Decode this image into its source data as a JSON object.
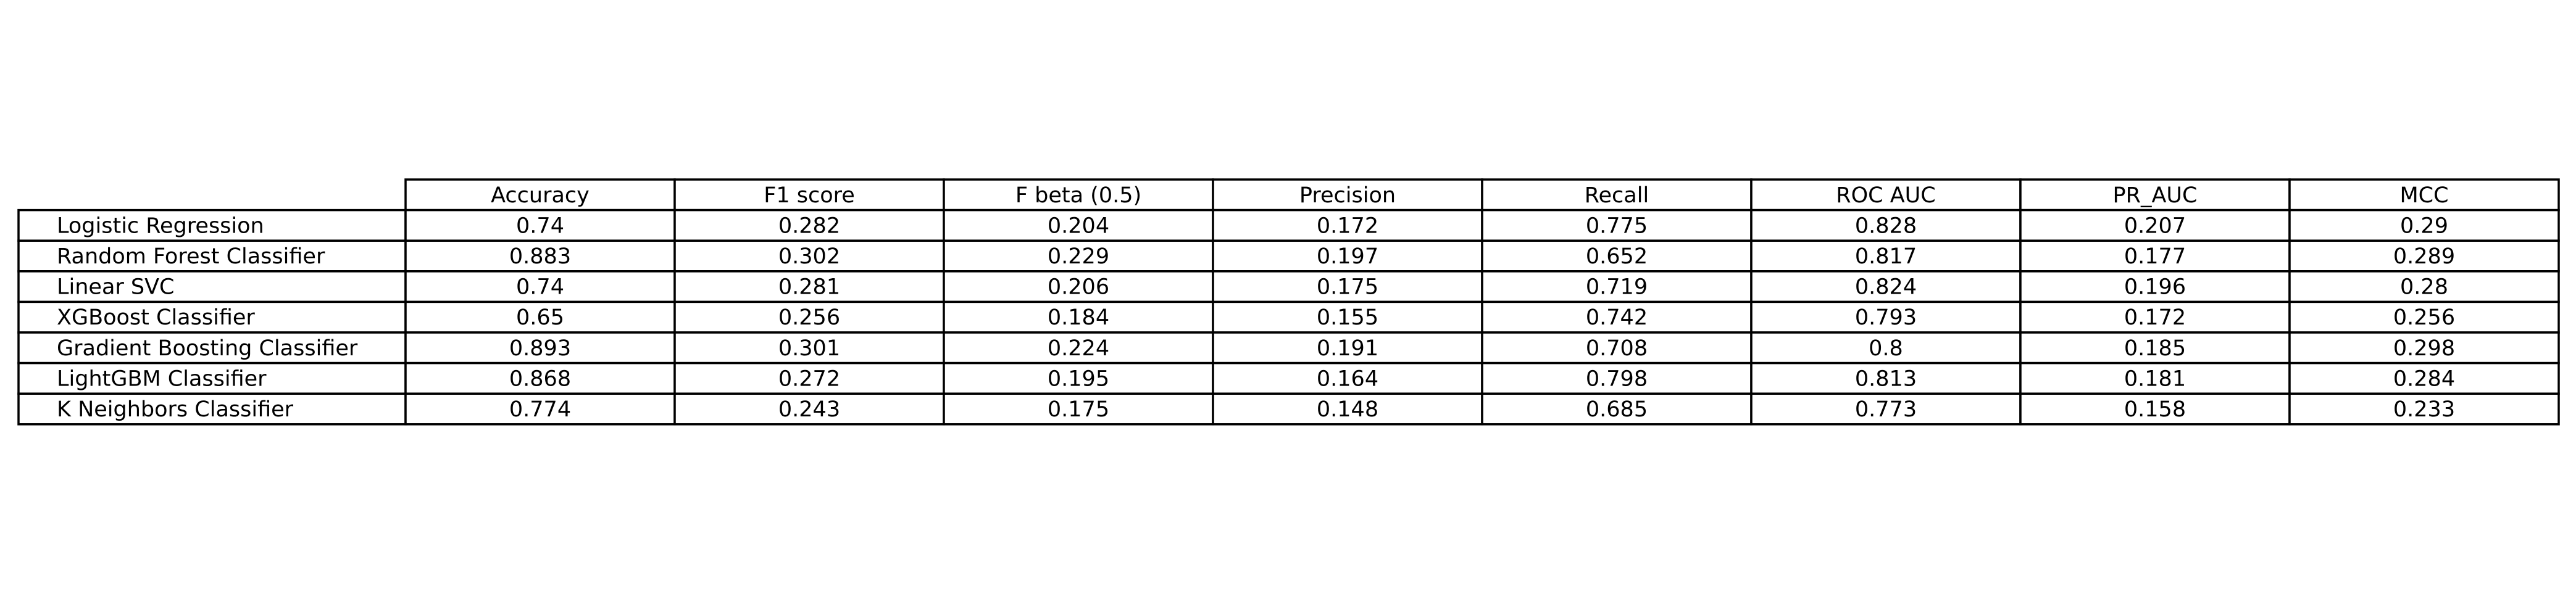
{
  "chart_data": {
    "type": "table",
    "columns": [
      "Accuracy",
      "F1 score",
      "F beta (0.5)",
      "Precision",
      "Recall",
      "ROC AUC",
      "PR_AUC",
      "MCC"
    ],
    "rows": [
      {
        "label": "Logistic Regression",
        "values": [
          "0.74",
          "0.282",
          "0.204",
          "0.172",
          "0.775",
          "0.828",
          "0.207",
          "0.29"
        ]
      },
      {
        "label": "Random Forest Classifier",
        "values": [
          "0.883",
          "0.302",
          "0.229",
          "0.197",
          "0.652",
          "0.817",
          "0.177",
          "0.289"
        ]
      },
      {
        "label": "Linear SVC",
        "values": [
          "0.74",
          "0.281",
          "0.206",
          "0.175",
          "0.719",
          "0.824",
          "0.196",
          "0.28"
        ]
      },
      {
        "label": "XGBoost Classifier",
        "values": [
          "0.65",
          "0.256",
          "0.184",
          "0.155",
          "0.742",
          "0.793",
          "0.172",
          "0.256"
        ]
      },
      {
        "label": "Gradient Boosting Classifier",
        "values": [
          "0.893",
          "0.301",
          "0.224",
          "0.191",
          "0.708",
          "0.8",
          "0.185",
          "0.298"
        ]
      },
      {
        "label": "LightGBM Classifier",
        "values": [
          "0.868",
          "0.272",
          "0.195",
          "0.164",
          "0.798",
          "0.813",
          "0.181",
          "0.284"
        ]
      },
      {
        "label": "K Neighbors Classifier",
        "values": [
          "0.774",
          "0.243",
          "0.175",
          "0.148",
          "0.685",
          "0.773",
          "0.158",
          "0.233"
        ]
      }
    ]
  }
}
